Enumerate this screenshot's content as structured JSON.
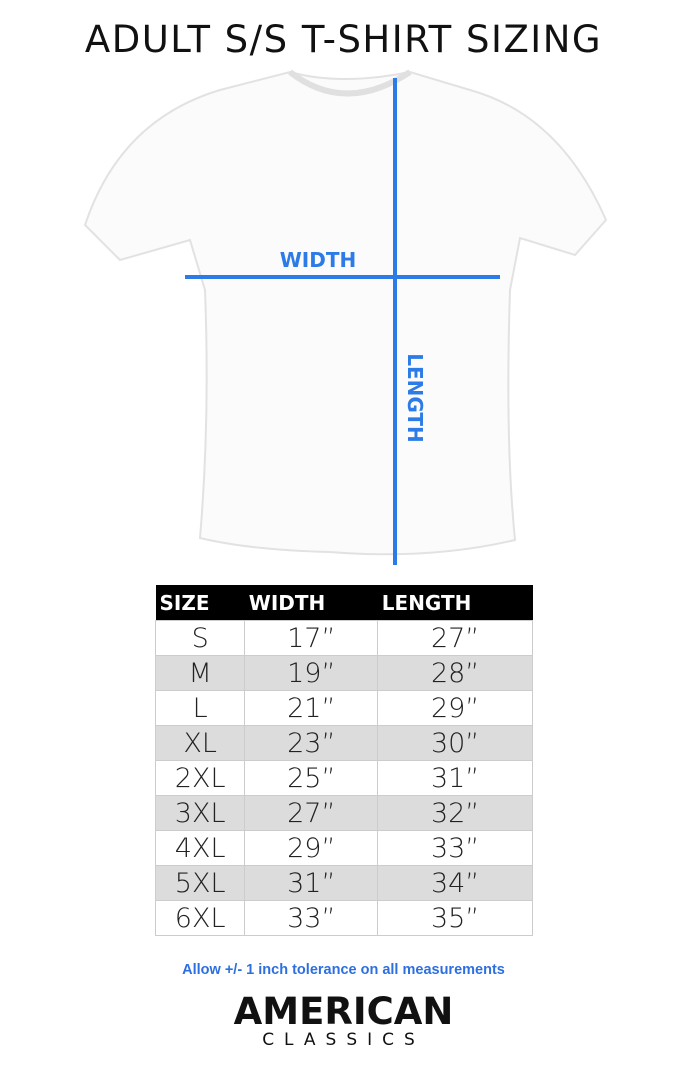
{
  "title": "ADULT S/S T-SHIRT SIZING",
  "diagram": {
    "width_label": "WIDTH",
    "length_label": "LENGTH",
    "line_color": "#2d7be6"
  },
  "table": {
    "headers": [
      "SIZE",
      "WIDTH",
      "LENGTH"
    ],
    "rows": [
      [
        "S",
        "17”",
        "27”"
      ],
      [
        "M",
        "19”",
        "28”"
      ],
      [
        "L",
        "21”",
        "29”"
      ],
      [
        "XL",
        "23”",
        "30”"
      ],
      [
        "2XL",
        "25”",
        "31”"
      ],
      [
        "3XL",
        "27”",
        "32”"
      ],
      [
        "4XL",
        "29”",
        "33”"
      ],
      [
        "5XL",
        "31”",
        "34”"
      ],
      [
        "6XL",
        "33”",
        "35”"
      ]
    ]
  },
  "note": "Allow +/- 1 inch tolerance on all measurements",
  "logo": {
    "line1": "AMERICAN",
    "line2": "CLASSICS"
  }
}
